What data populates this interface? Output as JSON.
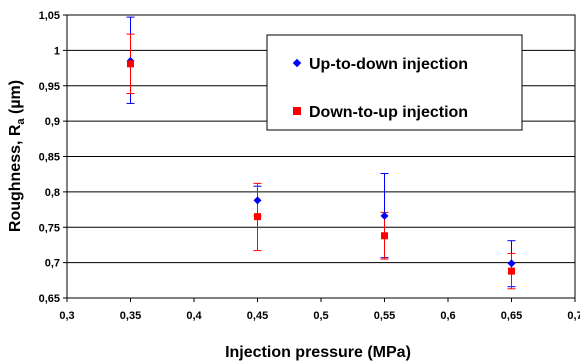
{
  "chart_data": {
    "type": "scatter",
    "xlabel": "Injection pressure (MPa)",
    "ylabel": {
      "main": "Roughness, R",
      "sub": "a",
      "rest": " (µm)"
    },
    "xlim": [
      0.3,
      0.7
    ],
    "ylim": [
      0.65,
      1.05
    ],
    "x_ticks": [
      "0,3",
      "0,35",
      "0,4",
      "0,45",
      "0,5",
      "0,55",
      "0,6",
      "0,65",
      "0,7"
    ],
    "y_ticks": [
      "0,65",
      "0,7",
      "0,75",
      "0,8",
      "0,85",
      "0,9",
      "0,95",
      "1",
      "1,05"
    ],
    "x_tick_values": [
      0.3,
      0.35,
      0.4,
      0.45,
      0.5,
      0.55,
      0.6,
      0.65,
      0.7
    ],
    "y_tick_values": [
      0.65,
      0.7,
      0.75,
      0.8,
      0.85,
      0.9,
      0.95,
      1.0,
      1.05
    ],
    "grid": {
      "horizontal": true,
      "vertical": false
    },
    "legend_position": "top-right",
    "series": [
      {
        "name": "Up-to-down injection",
        "marker": "diamond",
        "color": "#0000ff",
        "points": [
          {
            "x": 0.35,
            "y": 0.985,
            "err_low": 0.925,
            "err_high": 1.047
          },
          {
            "x": 0.45,
            "y": 0.788,
            "err_low": 0.766,
            "err_high": 0.808
          },
          {
            "x": 0.55,
            "y": 0.766,
            "err_low": 0.707,
            "err_high": 0.826
          },
          {
            "x": 0.65,
            "y": 0.699,
            "err_low": 0.666,
            "err_high": 0.731
          }
        ]
      },
      {
        "name": "Down-to-up injection",
        "marker": "square",
        "color": "#ff0000",
        "points": [
          {
            "x": 0.35,
            "y": 0.981,
            "err_low": 0.939,
            "err_high": 1.023
          },
          {
            "x": 0.45,
            "y": 0.765,
            "err_low": 0.717,
            "err_high": 0.812
          },
          {
            "x": 0.55,
            "y": 0.738,
            "err_low": 0.705,
            "err_high": 0.771
          },
          {
            "x": 0.65,
            "y": 0.688,
            "err_low": 0.663,
            "err_high": 0.713
          }
        ]
      }
    ]
  }
}
